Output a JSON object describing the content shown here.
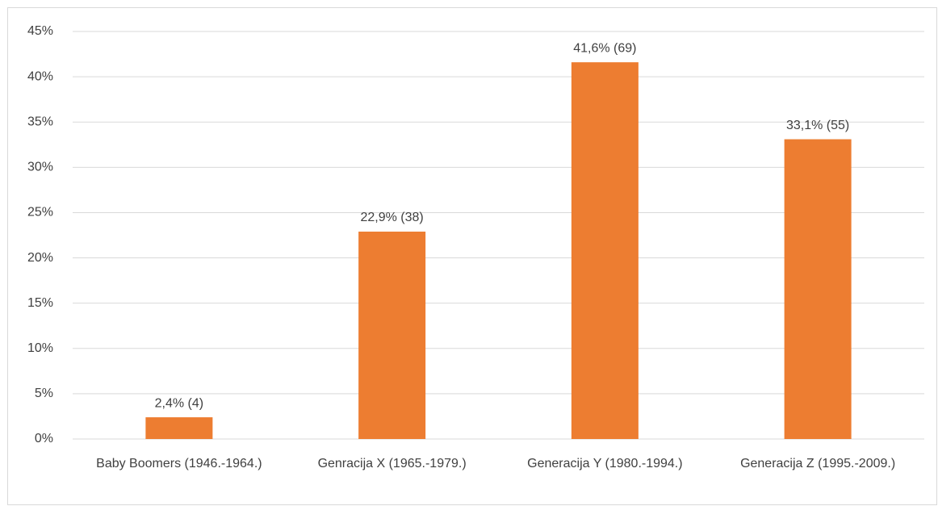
{
  "chart_data": {
    "type": "bar",
    "categories": [
      "Baby Boomers (1946.-1964.)",
      "Genracija X (1965.-1979.)",
      "Generacija Y (1980.-1994.)",
      "Generacija Z (1995.-2009.)"
    ],
    "values": [
      2.4,
      22.9,
      41.6,
      33.1
    ],
    "value_labels": [
      "2,4% (4)",
      "22,9% (38)",
      "41,6% (69)",
      "33,1% (55)"
    ],
    "color": "#ed7d31",
    "ylim": [
      0,
      45
    ],
    "yticks": [
      {
        "value": 0,
        "label": "0%"
      },
      {
        "value": 5,
        "label": "5%"
      },
      {
        "value": 10,
        "label": "10%"
      },
      {
        "value": 15,
        "label": "15%"
      },
      {
        "value": 20,
        "label": "20%"
      },
      {
        "value": 25,
        "label": "25%"
      },
      {
        "value": 30,
        "label": "30%"
      },
      {
        "value": 35,
        "label": "35%"
      },
      {
        "value": 40,
        "label": "40%"
      },
      {
        "value": 45,
        "label": "45%"
      }
    ],
    "grid": true
  }
}
